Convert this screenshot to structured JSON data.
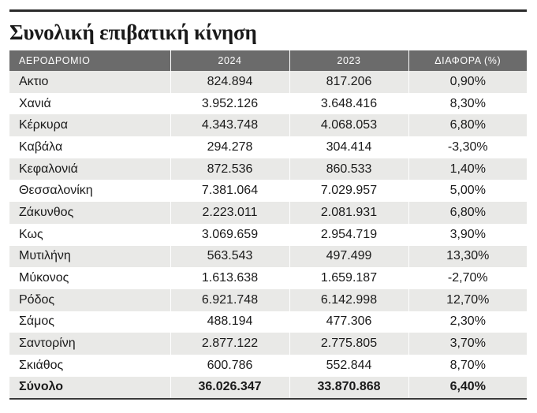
{
  "title": "Συνολική επιβατική κίνηση",
  "table": {
    "headers": [
      "ΑΕΡΟΔΡΟΜΙΟ",
      "2024",
      "2023",
      "ΔΙΑΦΟΡΑ (%)"
    ],
    "rows": [
      [
        "Ακτιο",
        "824.894",
        "817.206",
        "0,90%"
      ],
      [
        "Χανιά",
        "3.952.126",
        "3.648.416",
        "8,30%"
      ],
      [
        "Κέρκυρα",
        "4.343.748",
        "4.068.053",
        "6,80%"
      ],
      [
        "Καβάλα",
        "294.278",
        "304.414",
        "-3,30%"
      ],
      [
        "Κεφαλονιά",
        "872.536",
        "860.533",
        "1,40%"
      ],
      [
        "Θεσσαλονίκη",
        "7.381.064",
        "7.029.957",
        "5,00%"
      ],
      [
        "Ζάκυνθος",
        "2.223.011",
        "2.081.931",
        "6,80%"
      ],
      [
        "Κως",
        "3.069.659",
        "2.954.719",
        "3,90%"
      ],
      [
        "Μυτιλήνη",
        "563.543",
        "497.499",
        "13,30%"
      ],
      [
        "Μύκονος",
        "1.613.638",
        "1.659.187",
        "-2,70%"
      ],
      [
        "Ρόδος",
        "6.921.748",
        "6.142.998",
        "12,70%"
      ],
      [
        "Σάμος",
        "488.194",
        "477.306",
        "2,30%"
      ],
      [
        "Σαντορίνη",
        "2.877.122",
        "2.775.805",
        "3,70%"
      ],
      [
        "Σκιάθος",
        "600.786",
        "552.844",
        "8,70%"
      ]
    ],
    "total": [
      "Σύνολο",
      "36.026.347",
      "33.870.868",
      "6,40%"
    ]
  },
  "colors": {
    "header_bg": "#6b6b6b",
    "stripe_bg": "#e9e9e7",
    "rule": "#2b2b2b"
  }
}
